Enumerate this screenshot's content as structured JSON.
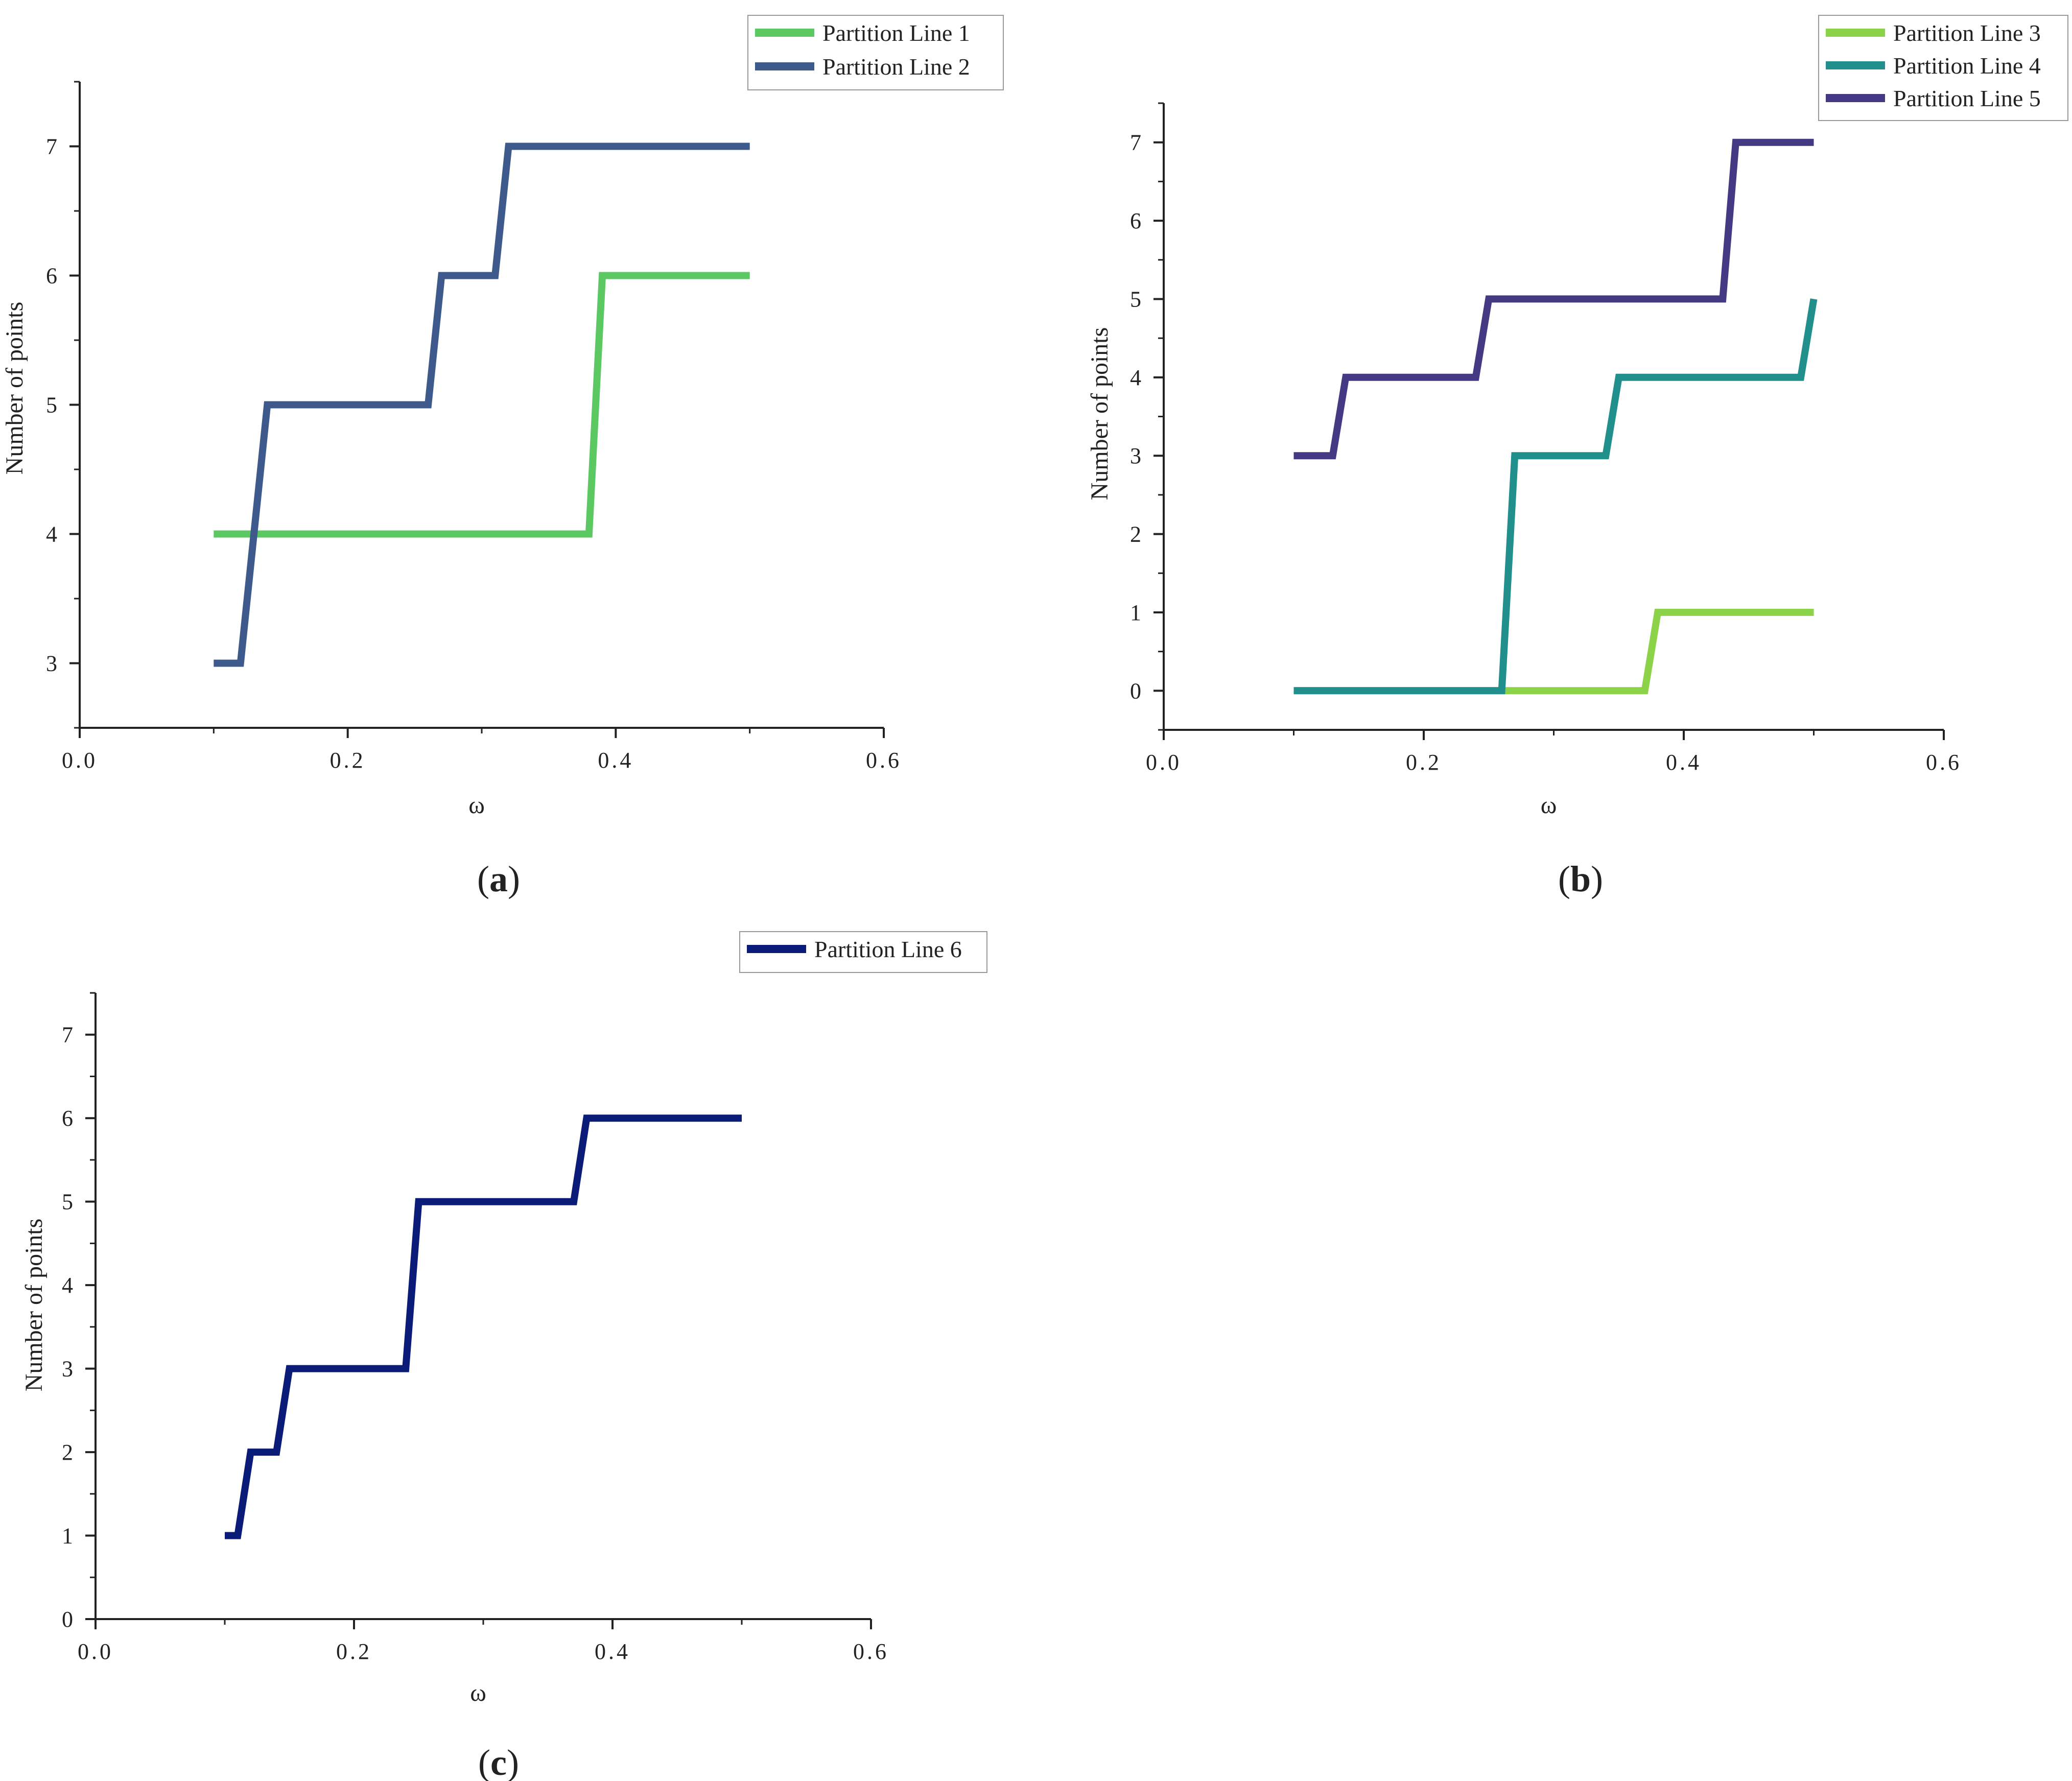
{
  "chart_data": [
    {
      "type": "line",
      "panel_label": "a",
      "xlabel": "ω",
      "ylabel": "Number of points",
      "xlim": [
        0,
        0.6
      ],
      "ylim": [
        2.5,
        7.5
      ],
      "xticks": [
        0,
        0.2,
        0.4,
        0.6
      ],
      "xtick_labels": [
        "0.0",
        "0.2",
        "0.4",
        "0.6"
      ],
      "yticks": [
        3,
        4,
        5,
        6,
        7
      ],
      "ytick_labels": [
        "3",
        "4",
        "5",
        "6",
        "7"
      ],
      "grid": false,
      "legend_position": "top-right",
      "series": [
        {
          "name": "Partition Line 1",
          "color": "#5BC862",
          "x": [
            0.1,
            0.38,
            0.39,
            0.5
          ],
          "y": [
            4,
            4,
            6,
            6
          ]
        },
        {
          "name": "Partition Line 2",
          "color": "#3E5A8C",
          "x": [
            0.1,
            0.12,
            0.14,
            0.26,
            0.27,
            0.31,
            0.32,
            0.5
          ],
          "y": [
            3,
            3,
            5,
            5,
            6,
            6,
            7,
            7
          ]
        }
      ]
    },
    {
      "type": "line",
      "panel_label": "b",
      "xlabel": "ω",
      "ylabel": "Number of points",
      "xlim": [
        0,
        0.6
      ],
      "ylim": [
        -0.5,
        7.5
      ],
      "xticks": [
        0,
        0.2,
        0.4,
        0.6
      ],
      "xtick_labels": [
        "0.0",
        "0.2",
        "0.4",
        "0.6"
      ],
      "yticks": [
        0,
        1,
        2,
        3,
        4,
        5,
        6,
        7
      ],
      "ytick_labels": [
        "0",
        "1",
        "2",
        "3",
        "4",
        "5",
        "6",
        "7"
      ],
      "grid": false,
      "legend_position": "top-right",
      "series": [
        {
          "name": "Partition Line 3",
          "color": "#8CD34A",
          "x": [
            0.1,
            0.37,
            0.38,
            0.5
          ],
          "y": [
            0,
            0,
            1,
            1
          ]
        },
        {
          "name": "Partition Line 4",
          "color": "#21908C",
          "x": [
            0.1,
            0.26,
            0.27,
            0.34,
            0.35,
            0.49,
            0.5
          ],
          "y": [
            0,
            0,
            3,
            3,
            4,
            4,
            5
          ]
        },
        {
          "name": "Partition Line 5",
          "color": "#443A83",
          "x": [
            0.1,
            0.13,
            0.14,
            0.24,
            0.25,
            0.43,
            0.44,
            0.5
          ],
          "y": [
            3,
            3,
            4,
            4,
            5,
            5,
            7,
            7
          ]
        }
      ]
    },
    {
      "type": "line",
      "panel_label": "c",
      "xlabel": "ω",
      "ylabel": "Number of points",
      "xlim": [
        0,
        0.6
      ],
      "ylim": [
        0,
        7.5
      ],
      "xticks": [
        0,
        0.2,
        0.4,
        0.6
      ],
      "xtick_labels": [
        "0.0",
        "0.2",
        "0.4",
        "0.6"
      ],
      "yticks": [
        0,
        1,
        2,
        3,
        4,
        5,
        6,
        7
      ],
      "ytick_labels": [
        "0",
        "1",
        "2",
        "3",
        "4",
        "5",
        "6",
        "7"
      ],
      "grid": false,
      "legend_position": "top-right",
      "series": [
        {
          "name": "Partition Line 6",
          "color": "#0B1C78",
          "x": [
            0.1,
            0.11,
            0.12,
            0.14,
            0.15,
            0.24,
            0.25,
            0.37,
            0.38,
            0.5
          ],
          "y": [
            1,
            1,
            2,
            2,
            3,
            3,
            5,
            5,
            6,
            6
          ]
        }
      ]
    }
  ]
}
